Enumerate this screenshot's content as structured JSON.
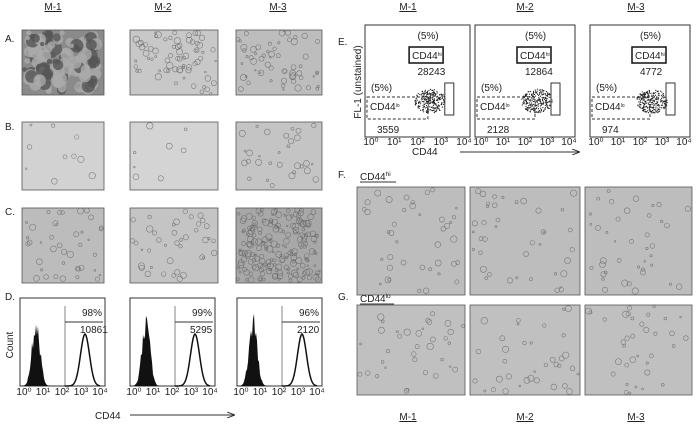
{
  "columns": [
    "M-1",
    "M-2",
    "M-3"
  ],
  "panel_labels": {
    "A": "A.",
    "B": "B.",
    "C": "C.",
    "D": "D.",
    "E": "E.",
    "F": "F.",
    "G": "G."
  },
  "histograms": {
    "y_label": "Count",
    "x_label": "CD44",
    "x_ticks": [
      "10⁰",
      "10¹",
      "10²",
      "10³",
      "10⁴"
    ],
    "items": [
      {
        "percent": "98%",
        "value": "10861"
      },
      {
        "percent": "99%",
        "value": "5295"
      },
      {
        "percent": "96%",
        "value": "2120"
      }
    ]
  },
  "scatter": {
    "y_label": "FL-1 (unstained)",
    "x_label": "CD44",
    "x_ticks": [
      "10⁰",
      "10¹",
      "10²",
      "10³",
      "10⁴"
    ],
    "hi_gate": [
      "CD44",
      "hi"
    ],
    "lo_gate": [
      "CD44",
      "lo"
    ],
    "items": [
      {
        "hi_percent": "(5%)",
        "hi_value": "28243",
        "lo_percent": "(5%)",
        "lo_value": "3559"
      },
      {
        "hi_percent": "(5%)",
        "hi_value": "12864",
        "lo_percent": "(5%)",
        "lo_value": "2128"
      },
      {
        "hi_percent": "(5%)",
        "hi_value": "4772",
        "lo_percent": "(5%)",
        "lo_value": "974"
      }
    ]
  },
  "subpanels": {
    "F": [
      "CD44",
      "hi"
    ],
    "G": [
      "CD44",
      "lo"
    ]
  }
}
